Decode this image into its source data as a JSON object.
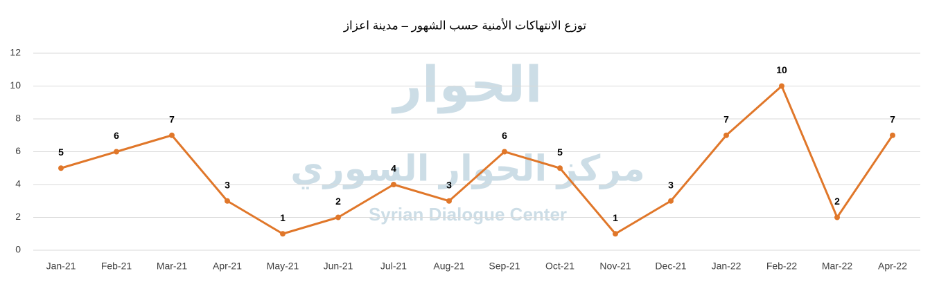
{
  "chart_data": {
    "type": "line",
    "title": "توزع الانتهاكات الأمنية حسب الشهور – مدينة اعزاز",
    "categories": [
      "Jan-21",
      "Feb-21",
      "Mar-21",
      "Apr-21",
      "May-21",
      "Jun-21",
      "Jul-21",
      "Aug-21",
      "Sep-21",
      "Oct-21",
      "Nov-21",
      "Dec-21",
      "Jan-22",
      "Feb-22",
      "Mar-22",
      "Apr-22"
    ],
    "values": [
      5,
      6,
      7,
      3,
      1,
      2,
      4,
      3,
      6,
      5,
      1,
      3,
      7,
      10,
      2,
      7
    ],
    "color": "#e0772a",
    "ylim": [
      0,
      12
    ],
    "yticks": [
      0,
      2,
      4,
      6,
      8,
      10,
      12
    ],
    "grid": true,
    "watermark": [
      "الحوار",
      "مركز الحوار السوري",
      "Syrian Dialogue Center"
    ]
  }
}
